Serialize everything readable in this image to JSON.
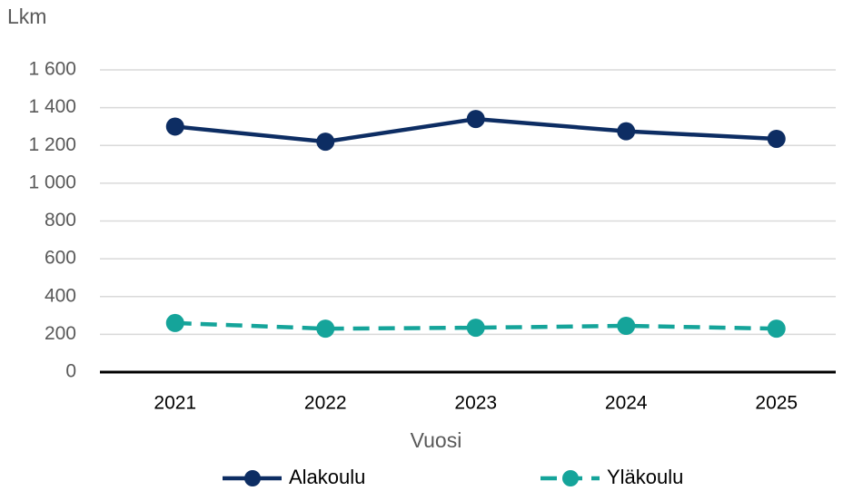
{
  "chart_data": {
    "type": "line",
    "y_label": "Lkm",
    "x_label": "Vuosi",
    "categories": [
      "2021",
      "2022",
      "2023",
      "2024",
      "2025"
    ],
    "series": [
      {
        "name": "Alakoulu",
        "color": "#0d2d63",
        "dash": false,
        "values": [
          1300,
          1220,
          1340,
          1275,
          1235
        ]
      },
      {
        "name": "Yläkoulu",
        "color": "#15a49a",
        "dash": true,
        "values": [
          260,
          230,
          235,
          245,
          230
        ]
      }
    ],
    "ylim": [
      0,
      1600
    ],
    "yticks": [
      0,
      200,
      400,
      600,
      800,
      {
        "value": 1000,
        "label": "1 000"
      },
      {
        "value": 1200,
        "label": "1 200"
      },
      {
        "value": 1400,
        "label": "1 400"
      },
      {
        "value": 1600,
        "label": "1 600"
      }
    ],
    "grid": true
  }
}
